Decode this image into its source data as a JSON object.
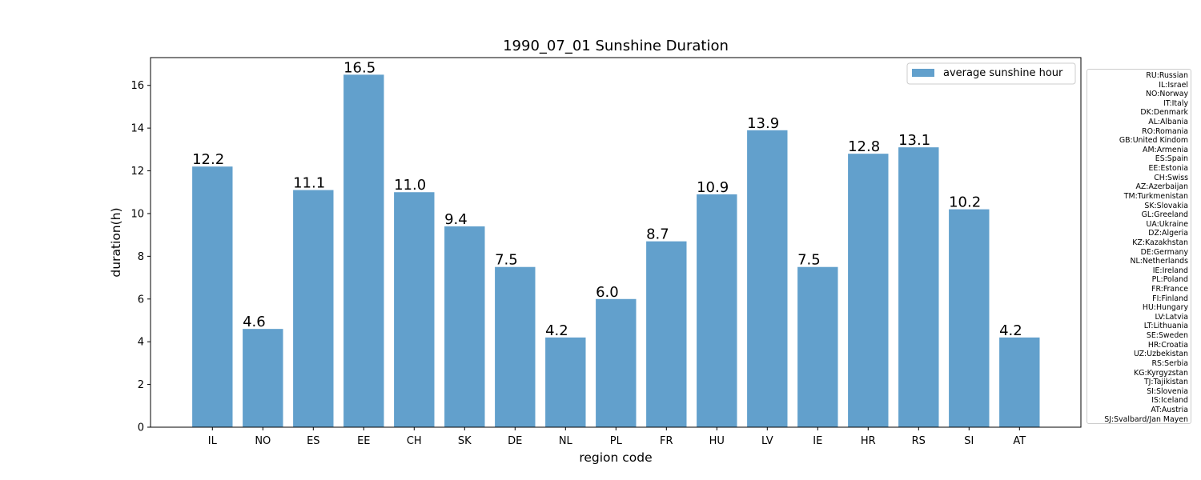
{
  "chart_data": {
    "type": "bar",
    "title": "1990_07_01 Sunshine Duration",
    "xlabel": "region code",
    "ylabel": "duration(h)",
    "categories": [
      "IL",
      "NO",
      "ES",
      "EE",
      "CH",
      "SK",
      "DE",
      "NL",
      "PL",
      "FR",
      "HU",
      "LV",
      "IE",
      "HR",
      "RS",
      "SI",
      "AT"
    ],
    "series": [
      {
        "name": "average sunshine hour",
        "values": [
          12.2,
          4.6,
          11.1,
          16.5,
          11.0,
          9.4,
          7.5,
          4.2,
          6.0,
          8.7,
          10.9,
          13.9,
          7.5,
          12.8,
          13.1,
          10.2,
          4.2
        ],
        "labels": [
          "12.2",
          "4.6",
          "11.1",
          "16.5",
          "11.0",
          "9.4",
          "7.5",
          "4.2",
          "6.0",
          "8.7",
          "10.9",
          "13.9",
          "7.5",
          "12.8",
          "13.1",
          "10.2",
          "4.2"
        ],
        "color": "#62a0cc"
      }
    ],
    "ylim": [
      0,
      17.3
    ],
    "yticks": [
      0,
      2,
      4,
      6,
      8,
      10,
      12,
      14,
      16
    ],
    "legend_position": "top-right",
    "grid": false
  },
  "region_code_legend": [
    "RU:Russian",
    "IL:Israel",
    "NO:Norway",
    "IT:Italy",
    "DK:Denmark",
    "AL:Albania",
    "RO:Romania",
    "GB:United Kindom",
    "AM:Armenia",
    "ES:Spain",
    "EE:Estonia",
    "CH:Swiss",
    "AZ:Azerbaijan",
    "TM:Turkmenistan",
    "SK:Slovakia",
    "GL:Greeland",
    "UA:Ukraine",
    "DZ:Algeria",
    "KZ:Kazakhstan",
    "DE:Germany",
    "NL:Netherlands",
    "IE:Ireland",
    "PL:Poland",
    "FR:France",
    "FI:Finland",
    "HU:Hungary",
    "LV:Latvia",
    "LT:Lithuania",
    "SE:Sweden",
    "HR:Croatia",
    "UZ:Uzbekistan",
    "RS:Serbia",
    "KG:Kyrgyzstan",
    "TJ:Tajikistan",
    "SI:Slovenia",
    "IS:Iceland",
    "AT:Austria",
    "SJ:Svalbard/Jan Mayen"
  ]
}
